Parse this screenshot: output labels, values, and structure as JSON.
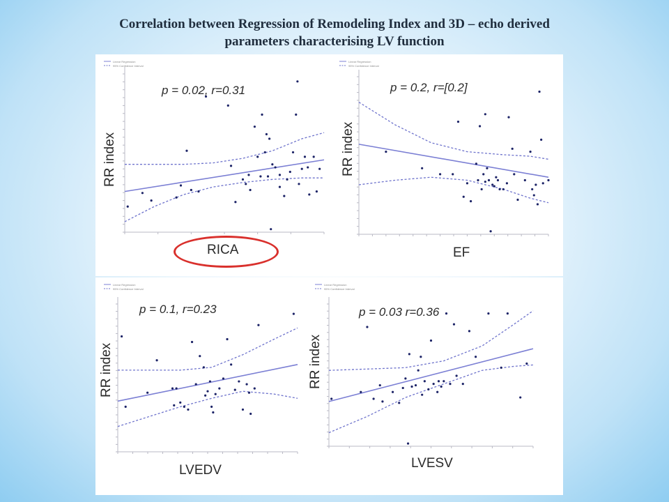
{
  "slide": {
    "title_line1": "Correlation between Regression of Remodeling Index and 3D – echo derived",
    "title_line2": "parameters characterising LV function"
  },
  "chart_data": [
    {
      "type": "scatter",
      "title": "",
      "annotation": "p = 0.02, r=0.31",
      "xlabel": "RICA",
      "ylabel": "RR index",
      "xlabel_highlighted": true,
      "points": [
        [
          0.02,
          0.17
        ],
        [
          0.12,
          0.26
        ],
        [
          0.18,
          0.21
        ],
        [
          0.35,
          0.23
        ],
        [
          0.38,
          0.31
        ],
        [
          0.42,
          0.54
        ],
        [
          0.45,
          0.28
        ],
        [
          0.5,
          0.27
        ],
        [
          0.55,
          0.9
        ],
        [
          0.7,
          0.84
        ],
        [
          0.72,
          0.44
        ],
        [
          0.75,
          0.2
        ],
        [
          0.8,
          0.35
        ],
        [
          0.82,
          0.32
        ],
        [
          0.84,
          0.38
        ],
        [
          0.85,
          0.28
        ],
        [
          0.88,
          0.7
        ],
        [
          0.9,
          0.5
        ],
        [
          0.92,
          0.37
        ],
        [
          0.93,
          0.78
        ],
        [
          0.95,
          0.53
        ],
        [
          0.96,
          0.65
        ],
        [
          0.97,
          0.37
        ],
        [
          0.98,
          0.62
        ],
        [
          0.99,
          0.02
        ],
        [
          1.0,
          0.45
        ],
        [
          1.02,
          0.43
        ],
        [
          1.05,
          0.3
        ],
        [
          1.05,
          0.38
        ],
        [
          1.08,
          0.24
        ],
        [
          1.1,
          0.35
        ],
        [
          1.12,
          0.4
        ],
        [
          1.14,
          0.53
        ],
        [
          1.16,
          0.78
        ],
        [
          1.17,
          1.0
        ],
        [
          1.18,
          0.32
        ],
        [
          1.2,
          0.42
        ],
        [
          1.22,
          0.5
        ],
        [
          1.24,
          0.43
        ],
        [
          1.25,
          0.25
        ],
        [
          1.28,
          0.5
        ],
        [
          1.3,
          0.27
        ],
        [
          1.32,
          0.42
        ]
      ],
      "fit": {
        "x": [
          0.0,
          1.35
        ],
        "y": [
          0.27,
          0.48
        ]
      },
      "ci_upper": {
        "x": [
          0.0,
          0.2,
          0.4,
          0.6,
          0.8,
          1.0,
          1.2,
          1.35
        ],
        "y": [
          0.45,
          0.45,
          0.45,
          0.46,
          0.49,
          0.54,
          0.62,
          0.66
        ]
      },
      "ci_lower": {
        "x": [
          0.0,
          0.2,
          0.4,
          0.6,
          0.8,
          1.0,
          1.2,
          1.35
        ],
        "y": [
          0.07,
          0.17,
          0.25,
          0.3,
          0.33,
          0.35,
          0.36,
          0.36
        ]
      },
      "xlim": [
        0.0,
        1.35
      ],
      "ylim": [
        0.0,
        1.05
      ],
      "legend": [
        "Linear Regression",
        "95% Confidence Interval"
      ],
      "legend_position": "top-left"
    },
    {
      "type": "scatter",
      "title": "",
      "annotation": "p = 0.2, r=[0.2]",
      "xlabel": "EF",
      "ylabel": "RR index",
      "points": [
        [
          0.25,
          0.55
        ],
        [
          0.45,
          0.44
        ],
        [
          0.55,
          0.4
        ],
        [
          0.62,
          0.4
        ],
        [
          0.65,
          0.75
        ],
        [
          0.68,
          0.25
        ],
        [
          0.7,
          0.34
        ],
        [
          0.72,
          0.22
        ],
        [
          0.75,
          0.47
        ],
        [
          0.76,
          0.36
        ],
        [
          0.77,
          0.72
        ],
        [
          0.78,
          0.3
        ],
        [
          0.79,
          0.4
        ],
        [
          0.8,
          0.35
        ],
        [
          0.8,
          0.8
        ],
        [
          0.81,
          0.44
        ],
        [
          0.82,
          0.36
        ],
        [
          0.83,
          0.02
        ],
        [
          0.84,
          0.33
        ],
        [
          0.85,
          0.32
        ],
        [
          0.86,
          0.38
        ],
        [
          0.87,
          0.36
        ],
        [
          0.88,
          0.3
        ],
        [
          0.9,
          0.3
        ],
        [
          0.92,
          0.34
        ],
        [
          0.93,
          0.78
        ],
        [
          0.95,
          0.57
        ],
        [
          0.96,
          0.4
        ],
        [
          0.98,
          0.23
        ],
        [
          1.02,
          0.36
        ],
        [
          1.05,
          0.55
        ],
        [
          1.06,
          0.3
        ],
        [
          1.07,
          0.26
        ],
        [
          1.08,
          0.33
        ],
        [
          1.09,
          0.2
        ],
        [
          1.1,
          0.95
        ],
        [
          1.11,
          0.63
        ],
        [
          1.12,
          0.34
        ],
        [
          1.15,
          0.36
        ]
      ],
      "fit": {
        "x": [
          0.1,
          1.15
        ],
        "y": [
          0.6,
          0.38
        ]
      },
      "ci_upper": {
        "x": [
          0.1,
          0.3,
          0.5,
          0.7,
          0.9,
          1.05,
          1.15
        ],
        "y": [
          0.88,
          0.73,
          0.61,
          0.55,
          0.53,
          0.52,
          0.5
        ]
      },
      "ci_lower": {
        "x": [
          0.1,
          0.3,
          0.5,
          0.7,
          0.9,
          1.05,
          1.15
        ],
        "y": [
          0.33,
          0.36,
          0.38,
          0.36,
          0.3,
          0.24,
          0.21
        ]
      },
      "xlim": [
        0.1,
        1.15
      ],
      "ylim": [
        0.0,
        1.05
      ],
      "legend": [
        "Linear Regression",
        "95% Confidence Interval"
      ],
      "legend_position": "top-left"
    },
    {
      "type": "scatter",
      "title": "",
      "annotation": "p = 0.1, r=0.23",
      "xlabel": "LVEDV",
      "ylabel": "RR index",
      "points": [
        [
          5,
          0.82
        ],
        [
          10,
          0.32
        ],
        [
          38,
          0.42
        ],
        [
          50,
          0.65
        ],
        [
          70,
          0.45
        ],
        [
          72,
          0.33
        ],
        [
          75,
          0.45
        ],
        [
          80,
          0.35
        ],
        [
          85,
          0.32
        ],
        [
          90,
          0.3
        ],
        [
          95,
          0.78
        ],
        [
          100,
          0.48
        ],
        [
          105,
          0.68
        ],
        [
          110,
          0.6
        ],
        [
          112,
          0.4
        ],
        [
          115,
          0.43
        ],
        [
          118,
          0.5
        ],
        [
          120,
          0.32
        ],
        [
          122,
          0.28
        ],
        [
          125,
          0.41
        ],
        [
          130,
          0.45
        ],
        [
          135,
          0.52
        ],
        [
          140,
          0.8
        ],
        [
          145,
          0.62
        ],
        [
          150,
          0.44
        ],
        [
          155,
          0.5
        ],
        [
          160,
          0.3
        ],
        [
          165,
          0.48
        ],
        [
          168,
          0.42
        ],
        [
          170,
          0.27
        ],
        [
          175,
          0.45
        ],
        [
          180,
          0.9
        ],
        [
          225,
          0.98
        ]
      ],
      "fit": {
        "x": [
          0,
          230
        ],
        "y": [
          0.36,
          0.62
        ]
      },
      "ci_upper": {
        "x": [
          0,
          40,
          80,
          120,
          160,
          200,
          230
        ],
        "y": [
          0.58,
          0.58,
          0.58,
          0.6,
          0.69,
          0.8,
          0.88
        ]
      },
      "ci_lower": {
        "x": [
          0,
          40,
          80,
          120,
          160,
          200,
          230
        ],
        "y": [
          0.18,
          0.25,
          0.32,
          0.38,
          0.43,
          0.41,
          0.38
        ]
      },
      "xlim": [
        0,
        230
      ],
      "ylim": [
        0.0,
        1.05
      ],
      "legend": [
        "Linear Regression",
        "95% Confidence Interval"
      ],
      "legend_position": "top-left"
    },
    {
      "type": "scatter",
      "title": "",
      "annotation": "p = 0.03 r=0.36",
      "xlabel": "LVESV",
      "ylabel": "RR index",
      "points": [
        [
          2,
          0.35
        ],
        [
          25,
          0.4
        ],
        [
          30,
          0.88
        ],
        [
          35,
          0.35
        ],
        [
          40,
          0.45
        ],
        [
          42,
          0.33
        ],
        [
          50,
          0.4
        ],
        [
          55,
          0.32
        ],
        [
          58,
          0.43
        ],
        [
          60,
          0.5
        ],
        [
          62,
          0.02
        ],
        [
          63,
          0.68
        ],
        [
          65,
          0.44
        ],
        [
          68,
          0.45
        ],
        [
          70,
          0.56
        ],
        [
          72,
          0.66
        ],
        [
          73,
          0.38
        ],
        [
          75,
          0.48
        ],
        [
          78,
          0.42
        ],
        [
          80,
          0.78
        ],
        [
          82,
          0.46
        ],
        [
          85,
          0.4
        ],
        [
          86,
          0.48
        ],
        [
          88,
          0.44
        ],
        [
          90,
          0.48
        ],
        [
          92,
          0.98
        ],
        [
          95,
          0.46
        ],
        [
          98,
          0.9
        ],
        [
          100,
          0.52
        ],
        [
          105,
          0.46
        ],
        [
          110,
          0.85
        ],
        [
          115,
          0.66
        ],
        [
          125,
          0.98
        ],
        [
          135,
          0.58
        ],
        [
          140,
          0.98
        ],
        [
          150,
          0.36
        ],
        [
          155,
          0.61
        ]
      ],
      "fit": {
        "x": [
          0,
          160
        ],
        "y": [
          0.33,
          0.72
        ]
      },
      "ci_upper": {
        "x": [
          0,
          30,
          60,
          90,
          120,
          145,
          160
        ],
        "y": [
          0.56,
          0.57,
          0.58,
          0.63,
          0.74,
          0.9,
          1.0
        ]
      },
      "ci_lower": {
        "x": [
          0,
          30,
          60,
          90,
          120,
          145,
          160
        ],
        "y": [
          0.1,
          0.22,
          0.36,
          0.46,
          0.56,
          0.59,
          0.6
        ]
      },
      "xlim": [
        0,
        160
      ],
      "ylim": [
        0.0,
        1.05
      ],
      "legend": [
        "Linear Regression",
        "95% Confidence Interval"
      ],
      "legend_position": "top-left"
    }
  ],
  "colors": {
    "points": "#1d2467",
    "line": "#7b7fd4",
    "ci": "#6e73cc",
    "highlight": "#d9302c"
  }
}
